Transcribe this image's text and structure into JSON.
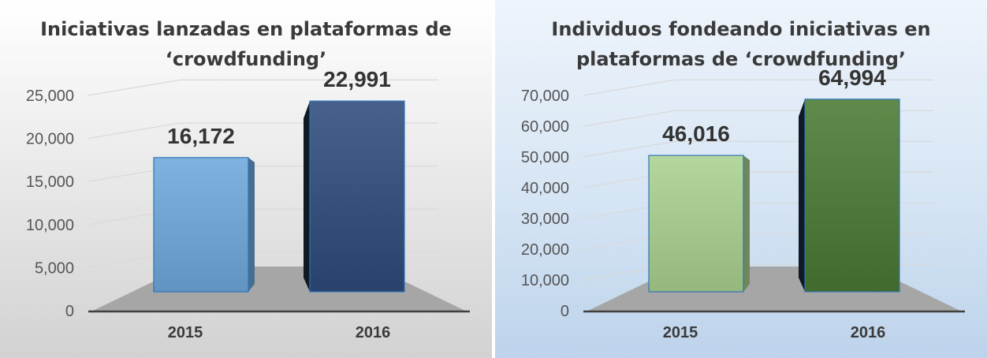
{
  "chart_data": [
    {
      "type": "bar",
      "title_lines": [
        "Iniciativas lanzadas en plataformas de",
        "‘crowdfunding’"
      ],
      "categories": [
        "2015",
        "2016"
      ],
      "values": [
        16172,
        22991
      ],
      "value_labels": [
        "16,172",
        "22,991"
      ],
      "yticks": [
        "0",
        "5,000",
        "10,000",
        "15,000",
        "20,000",
        "25,000"
      ],
      "ylim": [
        0,
        25000
      ],
      "xlabel": "",
      "ylabel": "",
      "colors": [
        "#6fa8dc",
        "#2f4b7c"
      ],
      "grid": true,
      "legend": "none"
    },
    {
      "type": "bar",
      "title_lines": [
        "Individuos fondeando iniciativas en",
        "plataformas de ‘crowdfunding’"
      ],
      "categories": [
        "2015",
        "2016"
      ],
      "values": [
        46016,
        64994
      ],
      "value_labels": [
        "46,016",
        "64,994"
      ],
      "yticks": [
        "0",
        "10,000",
        "20,000",
        "30,000",
        "40,000",
        "50,000",
        "60,000",
        "70,000"
      ],
      "ylim": [
        0,
        70000
      ],
      "xlabel": "",
      "ylabel": "",
      "colors": [
        "#a9d18e",
        "#4a7a33"
      ],
      "grid": true,
      "legend": "none"
    }
  ]
}
